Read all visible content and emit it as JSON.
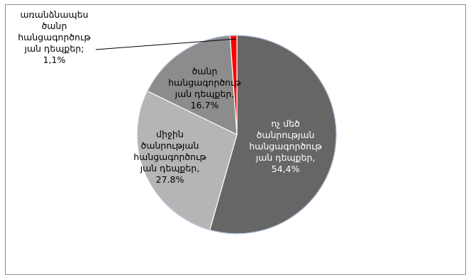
{
  "chart_data": {
    "type": "pie",
    "title": "",
    "slices": [
      {
        "label_lines": [
          "ոչ մեծ",
          "ծանրության",
          "հանցագործութ",
          "յան դեպքեր,",
          "54,4%"
        ],
        "value": 54.4,
        "color": "#666666"
      },
      {
        "label_lines": [
          "միջին",
          "ծանրության",
          "հանցագործութ",
          "յան դեպքեր,",
          "27.8%"
        ],
        "value": 27.8,
        "color": "#b5b5b5"
      },
      {
        "label_lines": [
          "ծանր",
          "հանցագործութ",
          "յան դեպքեր,",
          "16.7%"
        ],
        "value": 16.7,
        "color": "#8c8c8c"
      },
      {
        "label_lines": [
          "առանձնապես",
          "ծանր",
          "հանցագործութ",
          "յան դեպքեր;",
          "1,1%"
        ],
        "value": 1.1,
        "color": "#ff0000"
      }
    ]
  }
}
